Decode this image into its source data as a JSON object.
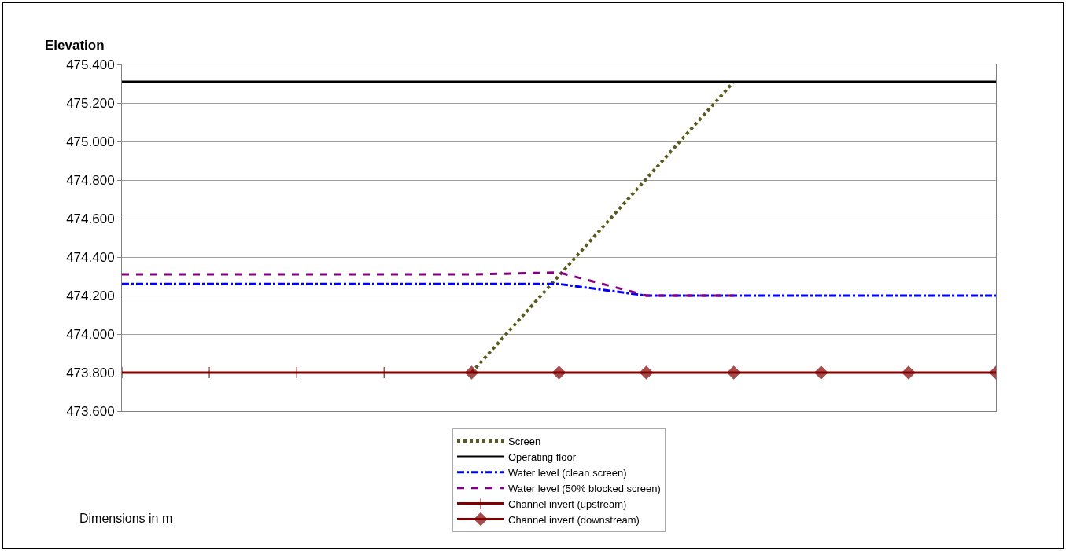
{
  "chart_data": {
    "type": "line",
    "ylabel": "Elevation",
    "categories": [
      null,
      null,
      null,
      null,
      null,
      null,
      null,
      null,
      null,
      null,
      null
    ],
    "series": [
      {
        "name": "Screen",
        "color": "#5a5a1e",
        "line_style": "dotted",
        "marker": "none",
        "values": [
          null,
          null,
          null,
          null,
          473.8,
          null,
          null,
          475.31,
          null,
          null,
          null
        ]
      },
      {
        "name": "Operating floor",
        "color": "#000000",
        "line_style": "solid",
        "marker": "none",
        "values": [
          475.31,
          475.31,
          475.31,
          475.31,
          475.31,
          475.31,
          475.31,
          475.31,
          475.31,
          475.31,
          475.31
        ]
      },
      {
        "name": "Water level (clean screen)",
        "color": "#0000ff",
        "line_style": "dashdot",
        "marker": "none",
        "values": [
          474.26,
          474.26,
          474.26,
          474.26,
          474.26,
          474.26,
          474.2,
          474.2,
          474.2,
          474.2,
          474.2
        ]
      },
      {
        "name": "Water level (50% blocked screen)",
        "color": "#800080",
        "line_style": "dashed",
        "marker": "none",
        "values": [
          474.31,
          474.31,
          474.31,
          474.31,
          474.31,
          474.32,
          474.2,
          474.2,
          null,
          null,
          null
        ]
      },
      {
        "name": "Channel invert (upstream)",
        "color": "#800000",
        "line_style": "solid",
        "marker": "cross",
        "values": [
          473.8,
          473.8,
          473.8,
          473.8,
          473.8,
          null,
          null,
          null,
          null,
          null,
          null
        ]
      },
      {
        "name": "Channel invert (downstream)",
        "color": "#800000",
        "line_style": "solid",
        "marker": "diamond",
        "values": [
          null,
          null,
          null,
          null,
          473.8,
          473.8,
          473.8,
          473.8,
          473.8,
          473.8,
          473.8
        ]
      }
    ],
    "ylim": [
      473.6,
      475.4
    ],
    "yticks": [
      {
        "value": 473.6,
        "label": "473.600"
      },
      {
        "value": 473.8,
        "label": "473.800"
      },
      {
        "value": 474.0,
        "label": "474.000"
      },
      {
        "value": 474.2,
        "label": "474.200"
      },
      {
        "value": 474.4,
        "label": "474.400"
      },
      {
        "value": 474.6,
        "label": "474.600"
      },
      {
        "value": 474.8,
        "label": "474.800"
      },
      {
        "value": 475.0,
        "label": "475.000"
      },
      {
        "value": 475.2,
        "label": "475.200"
      },
      {
        "value": 475.4,
        "label": "475.400"
      }
    ],
    "grid": "y",
    "legend": "bottom",
    "annotations": [
      "Dimensions in m"
    ]
  }
}
